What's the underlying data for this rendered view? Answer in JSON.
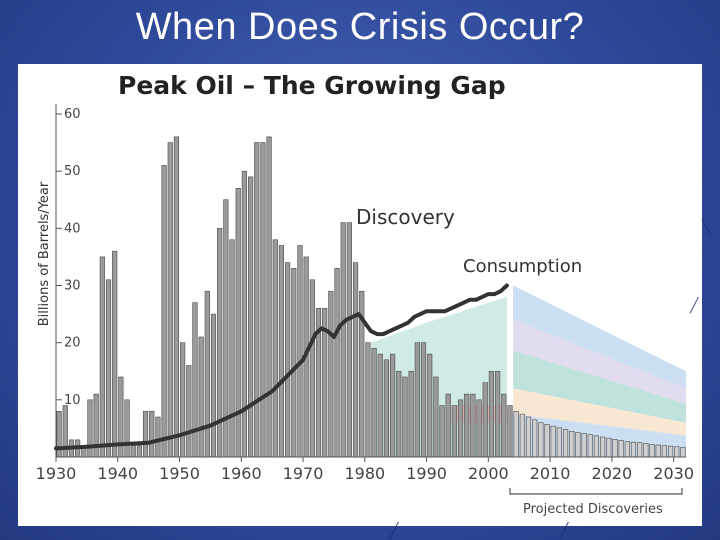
{
  "slide": {
    "title": "When Does Crisis Occur?"
  },
  "chart_data": {
    "type": "bar",
    "title": "Peak Oil – The Growing Gap",
    "ylabel": "Billions of Barrels/Year",
    "xlabel": "",
    "ylim": [
      0,
      60
    ],
    "xlim": [
      1930,
      2032
    ],
    "yticks": [
      10,
      20,
      30,
      40,
      50,
      60
    ],
    "xticks": [
      1930,
      1940,
      1950,
      1960,
      1970,
      1980,
      1990,
      2000,
      2010,
      2020,
      2030
    ],
    "annotations": {
      "discovery": "Discovery",
      "consumption": "Consumption",
      "projected": "Projected Discoveries"
    },
    "discovery_series": {
      "name": "Discovery",
      "x": [
        1930,
        1931,
        1932,
        1933,
        1934,
        1935,
        1936,
        1937,
        1938,
        1939,
        1940,
        1941,
        1942,
        1943,
        1944,
        1945,
        1946,
        1947,
        1948,
        1949,
        1950,
        1951,
        1952,
        1953,
        1954,
        1955,
        1956,
        1957,
        1958,
        1959,
        1960,
        1961,
        1962,
        1963,
        1964,
        1965,
        1966,
        1967,
        1968,
        1969,
        1970,
        1971,
        1972,
        1973,
        1974,
        1975,
        1976,
        1977,
        1978,
        1979,
        1980,
        1981,
        1982,
        1983,
        1984,
        1985,
        1986,
        1987,
        1988,
        1989,
        1990,
        1991,
        1992,
        1993,
        1994,
        1995,
        1996,
        1997,
        1998,
        1999,
        2000,
        2001,
        2002,
        2003
      ],
      "values": [
        8,
        9,
        3,
        3,
        2,
        10,
        11,
        35,
        31,
        36,
        14,
        10,
        2,
        2,
        8,
        8,
        7,
        51,
        55,
        56,
        20,
        16,
        27,
        21,
        29,
        25,
        40,
        45,
        38,
        47,
        50,
        49,
        55,
        55,
        56,
        38,
        37,
        34,
        33,
        37,
        35,
        31,
        26,
        26,
        29,
        33,
        41,
        41,
        34,
        29,
        20,
        19,
        18,
        17,
        18,
        15,
        14,
        15,
        20,
        20,
        18,
        14,
        9,
        11,
        9,
        10,
        11,
        11,
        10,
        13,
        15,
        15,
        11,
        9
      ]
    },
    "projected_series": {
      "name": "Projected Discoveries",
      "x": [
        2004,
        2005,
        2006,
        2007,
        2008,
        2009,
        2010,
        2011,
        2012,
        2013,
        2014,
        2015,
        2016,
        2017,
        2018,
        2019,
        2020,
        2021,
        2022,
        2023,
        2024,
        2025,
        2026,
        2027,
        2028,
        2029,
        2030,
        2031
      ],
      "values": [
        8,
        7.5,
        7,
        6.5,
        6,
        5.7,
        5.4,
        5.1,
        4.8,
        4.5,
        4.3,
        4.1,
        3.9,
        3.7,
        3.5,
        3.3,
        3.1,
        2.9,
        2.7,
        2.6,
        2.5,
        2.4,
        2.2,
        2.1,
        2,
        1.9,
        1.8,
        1.7
      ]
    },
    "consumption_series": {
      "name": "Consumption",
      "x": [
        1930,
        1935,
        1940,
        1945,
        1950,
        1955,
        1960,
        1965,
        1970,
        1972,
        1973,
        1974,
        1975,
        1976,
        1977,
        1978,
        1979,
        1980,
        1981,
        1982,
        1983,
        1984,
        1985,
        1986,
        1987,
        1988,
        1989,
        1990,
        1991,
        1992,
        1993,
        1994,
        1995,
        1996,
        1997,
        1998,
        1999,
        2000,
        2001,
        2002,
        2003
      ],
      "values": [
        1.5,
        1.8,
        2.2,
        2.5,
        3.8,
        5.5,
        8,
        11.5,
        17,
        21.5,
        22.5,
        22,
        21,
        23,
        24,
        24.5,
        25,
        23.5,
        22,
        21.5,
        21.5,
        22,
        22.5,
        23,
        23.5,
        24.5,
        25,
        25.5,
        25.5,
        25.5,
        25.5,
        26,
        26.5,
        27,
        27.5,
        27.5,
        28,
        28.5,
        28.5,
        29,
        30
      ]
    },
    "projected_bands": {
      "x": [
        2004,
        2032
      ],
      "top_values": [
        30,
        15
      ]
    },
    "colors": {
      "bar_fill": "#9a9a9a",
      "bar_stroke": "#4a4a4a",
      "projected_bar_fill": "#cfcfcf",
      "consumption_line": "#333333",
      "band_blue": "#b9d3ee",
      "band_teal": "#a9d8d2",
      "band_pink": "#f2b8b8",
      "band_peach": "#f6dfc4",
      "band_lav": "#d8d0ea"
    }
  }
}
